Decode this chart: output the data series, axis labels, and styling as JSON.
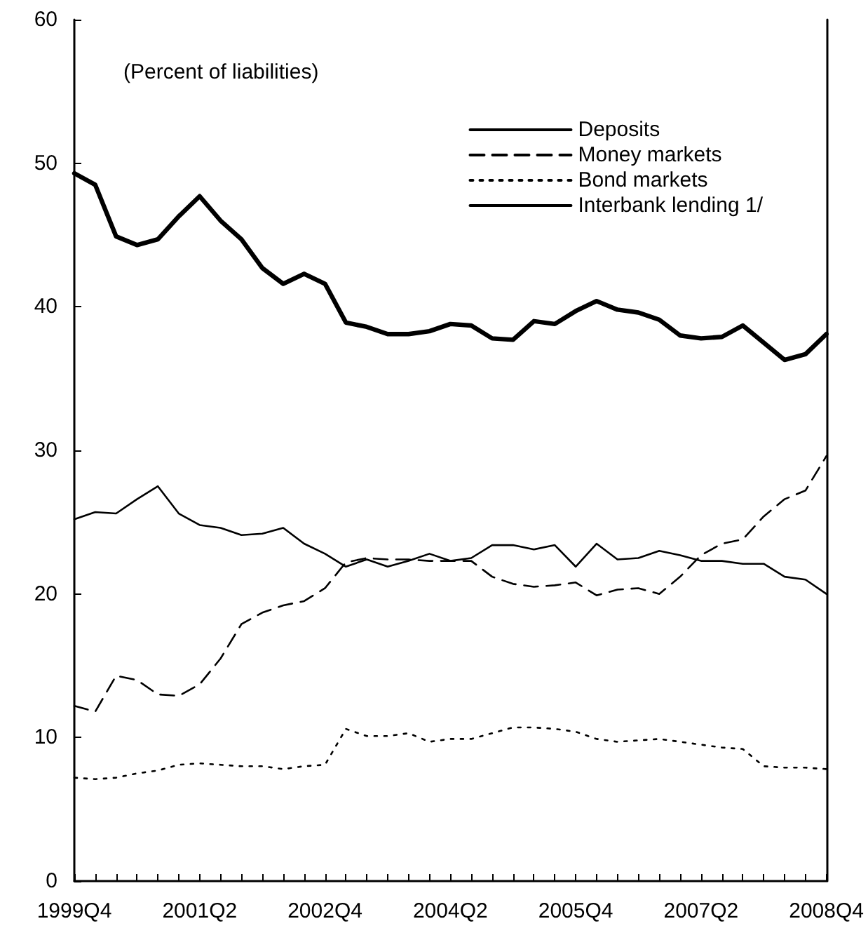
{
  "chart_data": {
    "type": "line",
    "annotations": [
      "(Percent of liabilities)"
    ],
    "categories": [
      "1999Q4",
      null,
      null,
      null,
      null,
      null,
      "2001Q2",
      null,
      null,
      null,
      null,
      null,
      "2002Q4",
      null,
      null,
      null,
      null,
      null,
      "2004Q2",
      null,
      null,
      null,
      null,
      null,
      "2005Q4",
      null,
      null,
      null,
      null,
      null,
      "2007Q2",
      null,
      null,
      null,
      null,
      null,
      "2008Q4"
    ],
    "series": [
      {
        "name": "Deposits",
        "color": "#000000",
        "line_style": "solid",
        "values": [
          25.2,
          25.7,
          25.6,
          26.6,
          27.5,
          25.6,
          24.8,
          24.6,
          24.1,
          24.2,
          24.6,
          23.5,
          22.8,
          21.9,
          22.4,
          21.9,
          22.3,
          22.8,
          22.3,
          22.5,
          23.4,
          23.4,
          23.1,
          23.4,
          21.9,
          23.5,
          22.4,
          22.5,
          23.0,
          22.7,
          22.3,
          22.3,
          22.1,
          22.1,
          21.2,
          21.0,
          20.0
        ]
      },
      {
        "name": "Money markets",
        "color": "#000000",
        "line_style": "dashed",
        "values": [
          12.2,
          11.8,
          14.3,
          14.0,
          13.0,
          12.9,
          13.7,
          15.5,
          17.9,
          18.7,
          19.2,
          19.5,
          20.4,
          22.2,
          22.5,
          22.4,
          22.4,
          22.3,
          22.3,
          22.3,
          21.2,
          20.7,
          20.5,
          20.6,
          20.8,
          19.9,
          20.3,
          20.4,
          20.0,
          21.2,
          22.7,
          23.5,
          23.8,
          25.4,
          26.6,
          27.2,
          29.6
        ]
      },
      {
        "name": "Bond markets",
        "color": "#000000",
        "line_style": "dotted",
        "values": [
          7.2,
          7.1,
          7.2,
          7.5,
          7.7,
          8.1,
          8.2,
          8.1,
          8.0,
          8.0,
          7.8,
          8.0,
          8.1,
          10.6,
          10.1,
          10.1,
          10.3,
          9.7,
          9.9,
          9.9,
          10.3,
          10.7,
          10.7,
          10.6,
          10.4,
          9.9,
          9.7,
          9.8,
          9.9,
          9.7,
          9.5,
          9.3,
          9.2,
          8.0,
          7.9,
          7.9,
          7.8
        ]
      },
      {
        "name": "Interbank lending 1/",
        "color": "#000000",
        "line_style": "solid",
        "values": [
          49.3,
          48.5,
          44.9,
          44.3,
          44.7,
          46.3,
          47.7,
          46.0,
          44.7,
          42.7,
          41.6,
          42.3,
          41.6,
          38.9,
          38.6,
          38.1,
          38.1,
          38.3,
          38.8,
          38.7,
          37.8,
          37.7,
          39.0,
          38.8,
          39.7,
          40.4,
          39.8,
          39.6,
          39.1,
          38.0,
          37.8,
          37.9,
          38.7,
          37.5,
          36.3,
          36.7,
          38.1
        ]
      }
    ],
    "ylim": [
      0,
      60
    ],
    "yticks": [
      0,
      10,
      20,
      30,
      40,
      50,
      60
    ],
    "grid": false,
    "legend": "top right",
    "marker": "none"
  }
}
